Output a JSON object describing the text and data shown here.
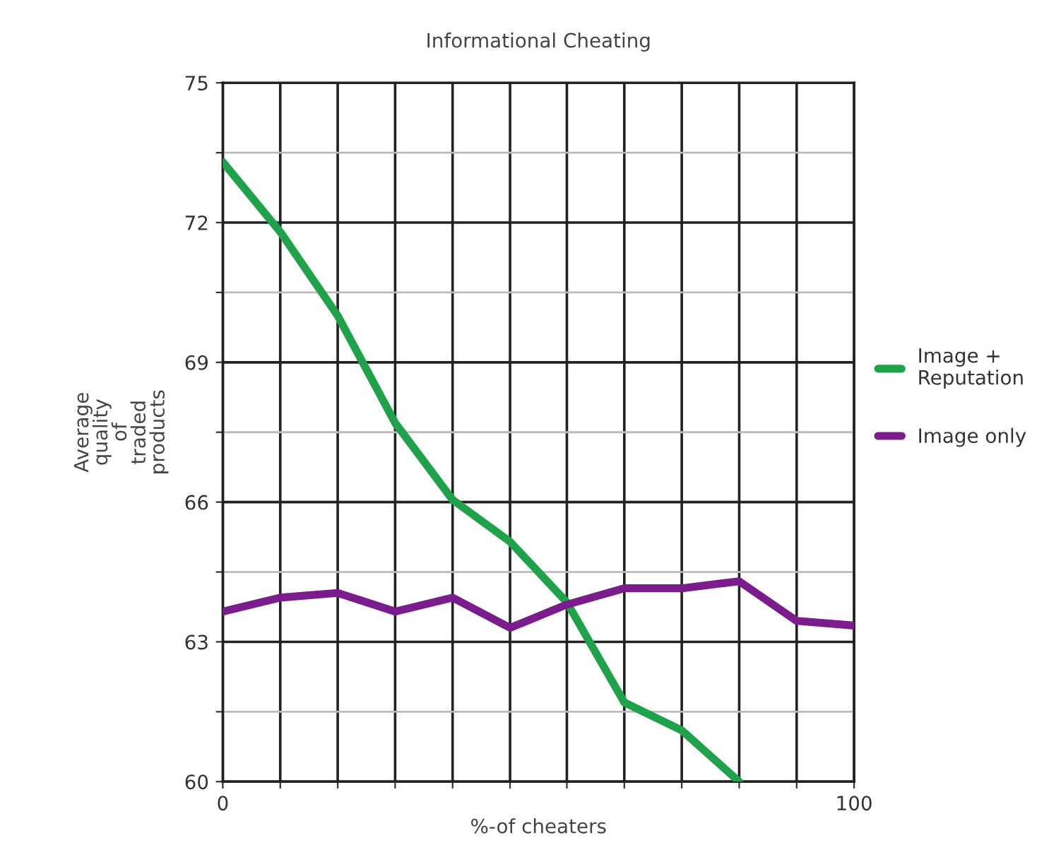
{
  "chart_data": {
    "type": "line",
    "title": "Informational Cheating",
    "xlabel": "%-of cheaters",
    "ylabel": "Average\nquality\nof\ntraded\nproducts",
    "x": [
      0,
      9.1,
      18.2,
      27.3,
      36.4,
      45.5,
      54.5,
      63.6,
      72.7,
      81.8,
      90.9,
      100
    ],
    "series": [
      {
        "name": "Image +\nReputation",
        "color": "#1fa24a",
        "values": [
          73.3,
          71.8,
          70.0,
          67.7,
          66.05,
          65.15,
          63.85,
          61.7,
          61.1,
          60.0,
          null,
          null
        ]
      },
      {
        "name": "Image only",
        "color": "#7a1c8c",
        "values": [
          63.65,
          63.95,
          64.05,
          63.65,
          63.95,
          63.3,
          63.8,
          64.15,
          64.15,
          64.3,
          63.45,
          63.35
        ]
      }
    ],
    "xlim": [
      0,
      100
    ],
    "ylim": [
      60,
      75
    ],
    "xticks": [
      0,
      {
        "value": 9.1,
        "label": null
      },
      {
        "value": 18.2,
        "label": null
      },
      {
        "value": 27.3,
        "label": null
      },
      {
        "value": 36.4,
        "label": null
      },
      {
        "value": 45.5,
        "label": null
      },
      {
        "value": 54.5,
        "label": null
      },
      {
        "value": 63.6,
        "label": null
      },
      {
        "value": 72.7,
        "label": null
      },
      {
        "value": 81.8,
        "label": null
      },
      {
        "value": 90.9,
        "label": null
      },
      100
    ],
    "yticks": [
      60,
      {
        "value": 61.5,
        "label": null
      },
      63,
      {
        "value": 64.5,
        "label": null
      },
      66,
      {
        "value": 67.5,
        "label": null
      },
      69,
      {
        "value": 70.5,
        "label": null
      },
      72,
      {
        "value": 73.5,
        "label": null
      },
      75
    ],
    "grid": true,
    "legend": "right",
    "marker": "none",
    "line_style": "solid"
  }
}
